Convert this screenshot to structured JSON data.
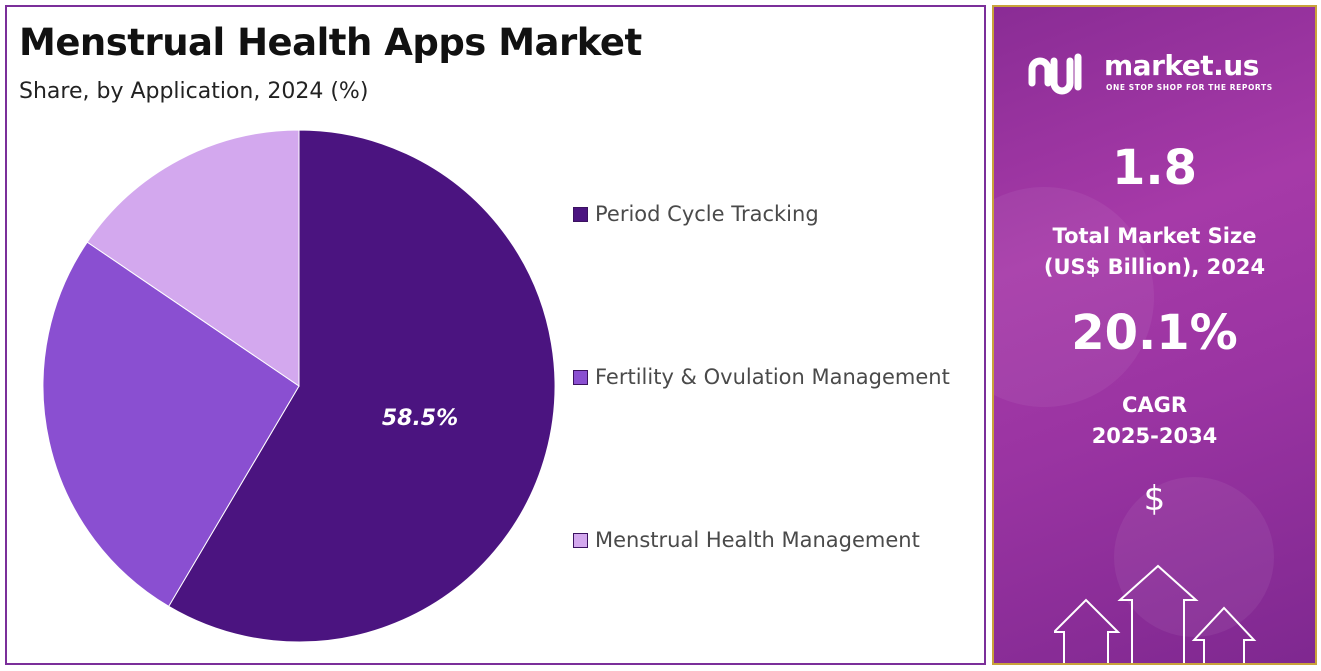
{
  "chart_data": {
    "type": "pie",
    "title": "Menstrual Health Apps Market",
    "subtitle": "Share, by Application, 2024 (%)",
    "categories": [
      "Period Cycle Tracking",
      "Fertility & Ovulation Management",
      "Menstrual Health Management"
    ],
    "values": [
      58.5,
      26.0,
      15.5
    ],
    "data_labels": [
      "58.5%",
      "",
      ""
    ],
    "colors": [
      "#4b1480",
      "#8a4fd1",
      "#d3a8ee"
    ],
    "legend_position": "right"
  },
  "side_panel": {
    "logo_text": "market.us",
    "logo_tagline": "ONE STOP SHOP FOR THE REPORTS",
    "market_size_value": "1.8",
    "market_size_label_line1": "Total Market Size",
    "market_size_label_line2": "(US$ Billion), 2024",
    "cagr_value": "20.1%",
    "cagr_label_line1": "CAGR",
    "cagr_label_line2": "2025-2034",
    "currency_symbol": "$",
    "icons": [
      "logo-icon",
      "dollar-icon",
      "growth-arrows-icon"
    ]
  }
}
